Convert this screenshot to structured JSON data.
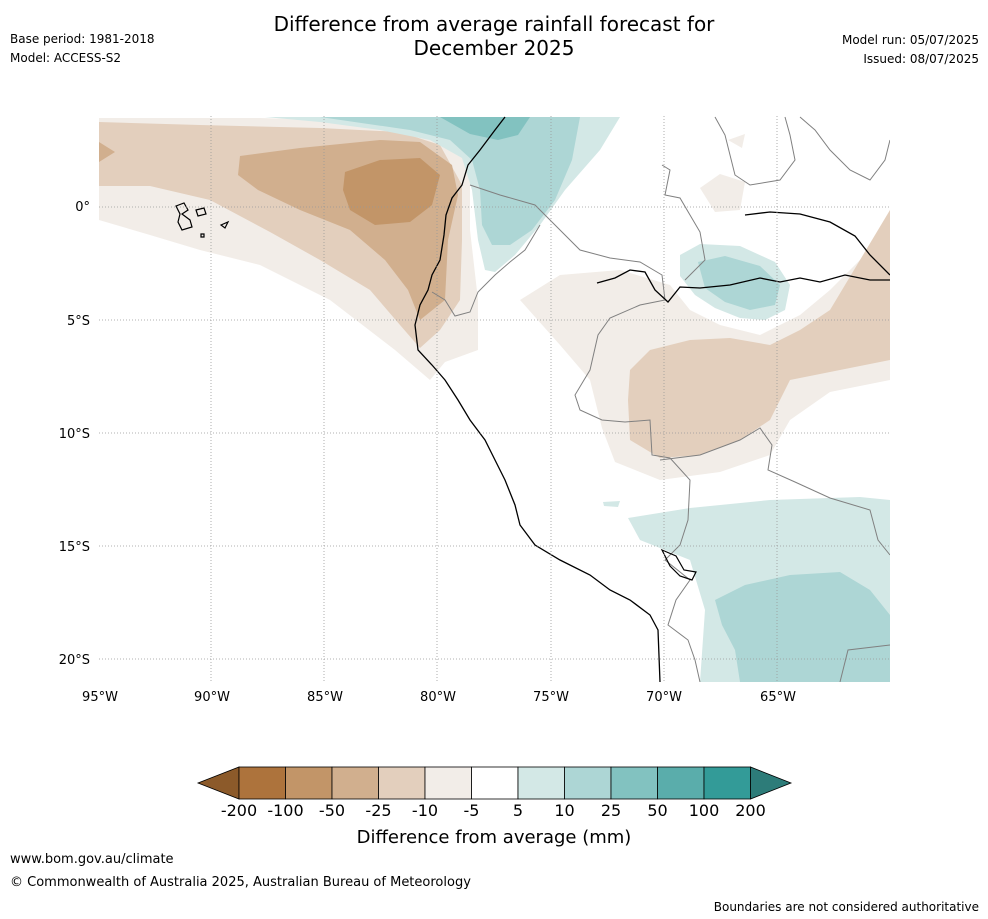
{
  "header": {
    "title_line1": "Difference from average rainfall forecast for",
    "title_line2": "December 2025",
    "base_period": "Base period: 1981-2018",
    "model": "Model: ACCESS-S2",
    "model_run": "Model run: 05/07/2025",
    "issued": "Issued: 08/07/2025"
  },
  "map": {
    "lon_labels": [
      "95°W",
      "90°W",
      "85°W",
      "80°W",
      "75°W",
      "70°W",
      "65°W"
    ],
    "lat_labels": [
      "0°",
      "5°S",
      "10°S",
      "15°S",
      "20°S"
    ],
    "lon_range": [
      -95,
      -60
    ],
    "lat_range": [
      4,
      -21
    ],
    "colors": {
      "dry_200": "#8c5a2a",
      "dry_100": "#ad733c",
      "dry_50": "#c29568",
      "dry_25": "#d1af8e",
      "dry_10": "#e3cfbd",
      "dry_5": "#f2ede8",
      "neutral": "#ffffff",
      "wet_5": "#d3e8e6",
      "wet_10": "#add6d5",
      "wet_25": "#82c2c0",
      "wet_50": "#5aadab",
      "wet_100": "#339b98",
      "wet_200": "#2d7c79",
      "coast": "#000000",
      "border": "#808080",
      "grid": "#999999"
    }
  },
  "colorbar": {
    "ticks": [
      "-200",
      "-100",
      "-50",
      "-25",
      "-10",
      "-5",
      "5",
      "10",
      "25",
      "50",
      "100",
      "200"
    ],
    "label": "Difference from average (mm)"
  },
  "footer": {
    "url": "www.bom.gov.au/climate",
    "copyright": "© Commonwealth of Australia 2025, Australian Bureau of Meteorology",
    "disclaimer": "Boundaries are not considered authoritative"
  }
}
